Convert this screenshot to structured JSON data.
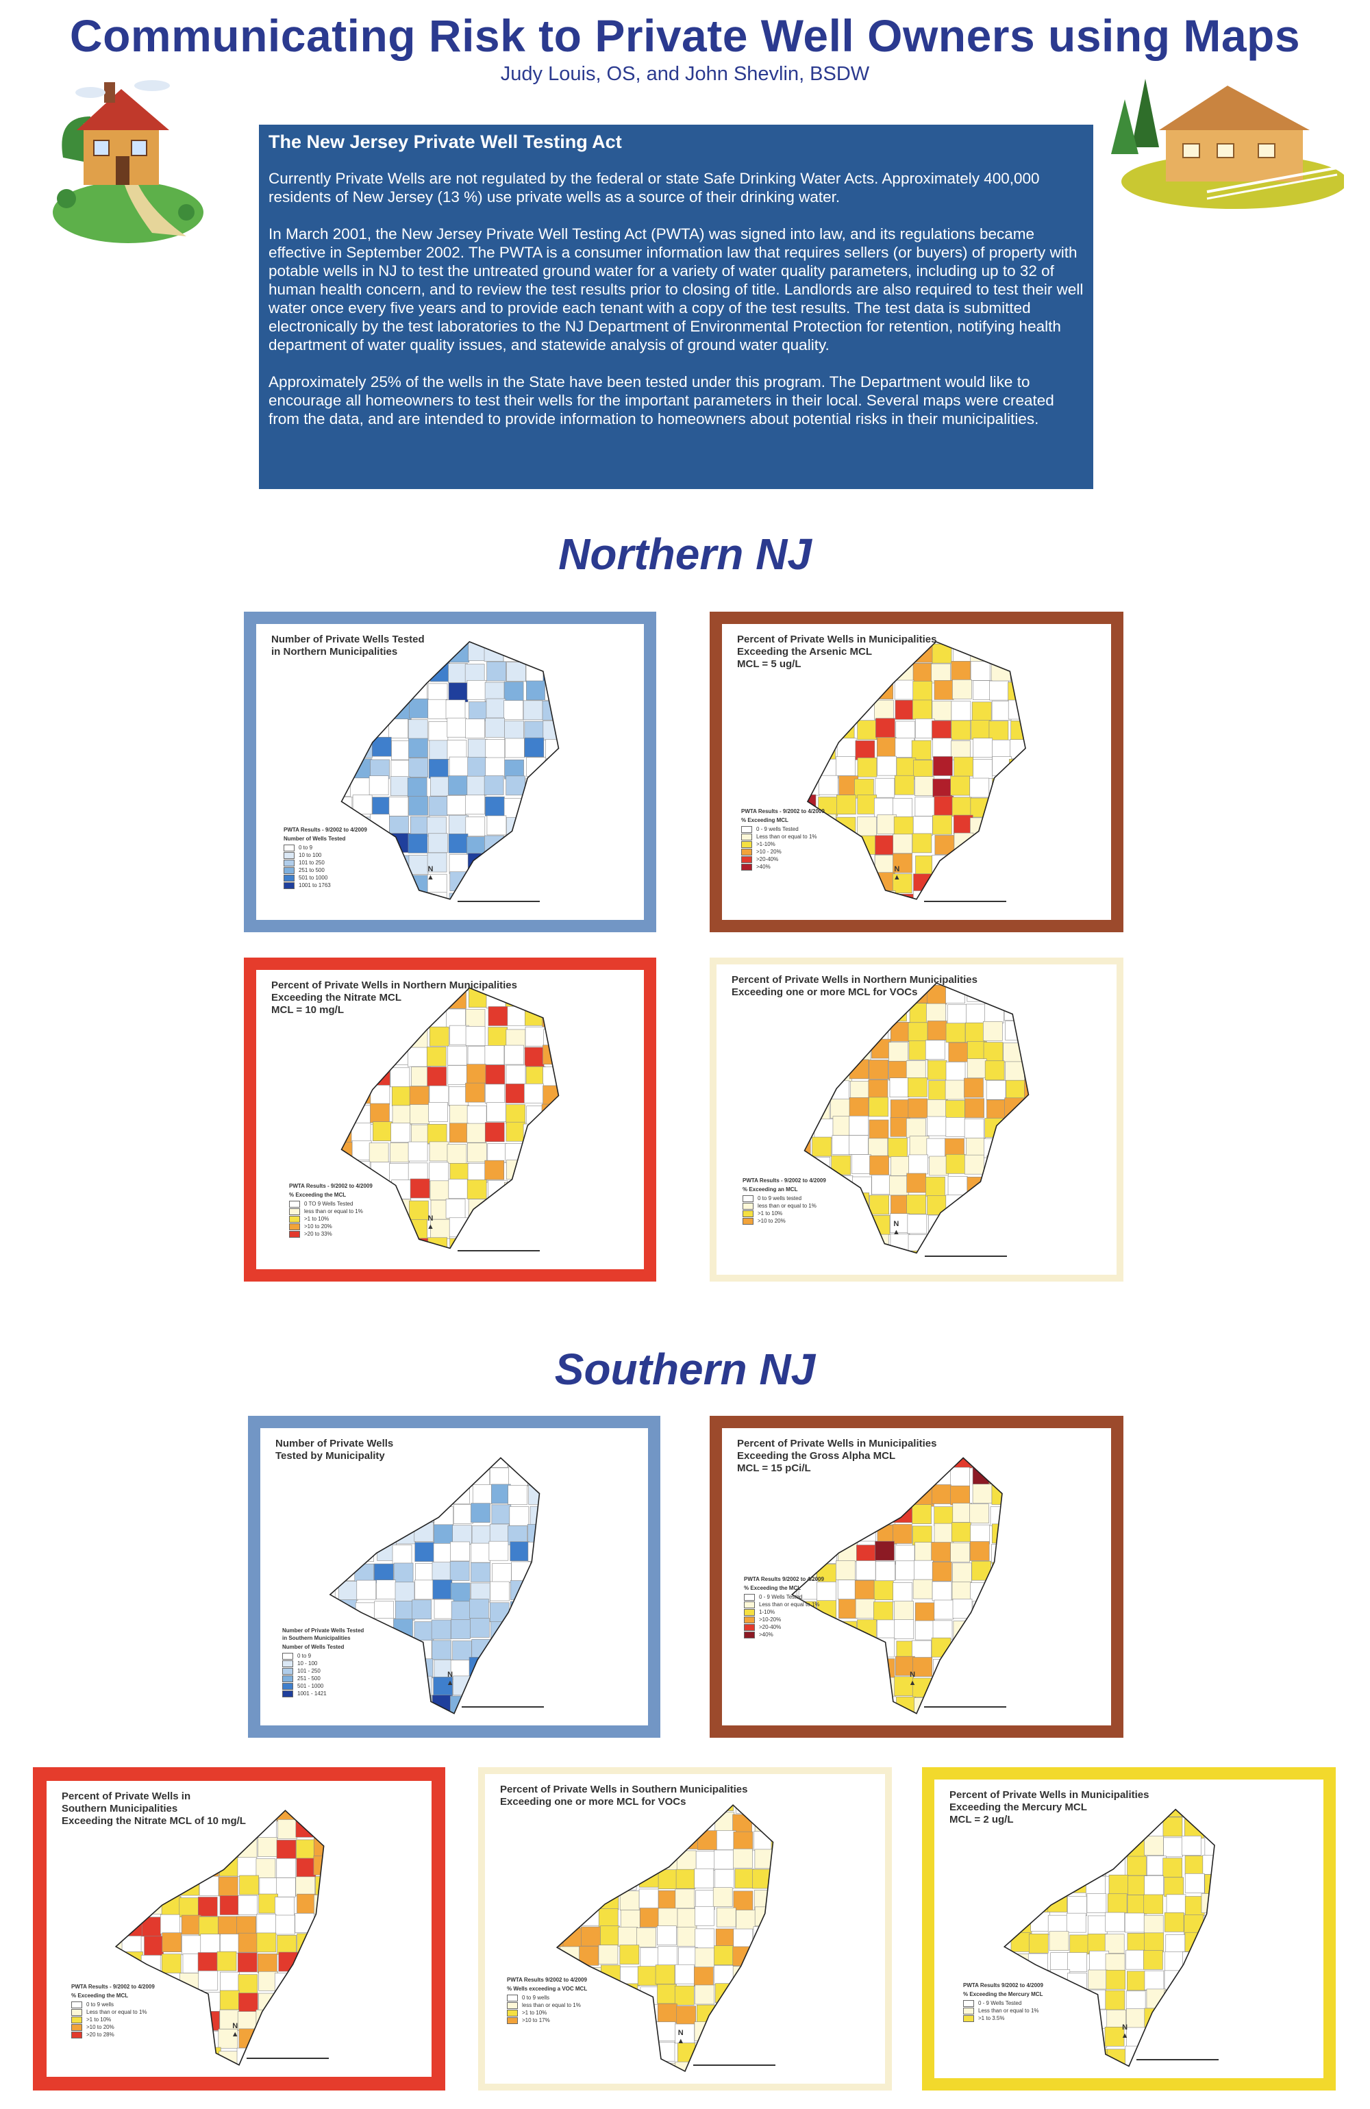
{
  "header": {
    "title": "Communicating Risk to Private Well Owners using Maps",
    "authors": "Judy Louis, OS, and John Shevlin, BSDW"
  },
  "intro": {
    "heading": "The New Jersey Private Well Testing Act",
    "p1": "Currently Private Wells are not regulated by the federal or state Safe Drinking Water Acts.  Approximately 400,000 residents of New Jersey (13 %) use private wells as a source of their drinking water.",
    "p2": "In March 2001, the New Jersey Private Well Testing Act (PWTA) was signed into law, and its regulations became effective in September 2002. The PWTA is a consumer information law that requires sellers (or buyers) of property with potable wells in NJ to test the untreated ground water for a variety of water quality parameters, including up to 32 of human health concern, and to review the test results prior to closing of title. Landlords are also required to test their well water once every five years and to provide each tenant with a copy of the test results.  The test data is submitted electronically by the test laboratories to the NJ Department of Environmental Protection for retention, notifying health department of water quality issues, and statewide analysis of ground  water quality.",
    "p3": "Approximately 25% of the wells in the State have been tested under this program.  The Department would like to encourage all homeowners to test their wells for the important parameters in their local.  Several maps were created from the data, and are intended to provide information to homeowners about potential risks in their municipalities."
  },
  "sections": {
    "north": "Northern NJ",
    "south": "Southern NJ"
  },
  "maps": [
    {
      "title": "Number of Private Wells Tested\nin Northern Municipalities",
      "legend_head": "PWTA Results - 9/2002 to 4/2009",
      "legend_sub": "Number of Wells Tested",
      "legend": [
        "0 to 9",
        "10 to 100",
        "101 to 250",
        "251 to 500",
        "501 to 1000",
        "1001 to 1763"
      ],
      "frame": "#7296c5",
      "colors": [
        "#ffffff",
        "#dbe8f5",
        "#b0cdea",
        "#7fb0dd",
        "#3f7fcc",
        "#1f3f9c"
      ]
    },
    {
      "title": "Percent of Private Wells in Municipalities\nExceeding the Arsenic MCL\nMCL = 5 ug/L",
      "legend_head": "PWTA Results - 9/2002 to 4/2009",
      "legend_sub": "% Exceeding MCL",
      "legend": [
        "0 - 9 wells Tested",
        "Less than or equal to 1%",
        ">1-10%",
        ">10 - 20%",
        ">20-40%",
        ">40%"
      ],
      "frame": "#9c4a2c",
      "colors": [
        "#ffffff",
        "#fdf8d8",
        "#f5e042",
        "#f2a33a",
        "#e23a2d",
        "#b01e2a"
      ]
    },
    {
      "title": "Percent of Private Wells in Northern Municipalities\nExceeding the Nitrate MCL\nMCL = 10 mg/L",
      "legend_head": "PWTA Results - 9/2002 to 4/2009",
      "legend_sub": "% Exceeding the MCL",
      "legend": [
        "0 TO 9 Wells Tested",
        "less than or equal to 1%",
        ">1 to 10%",
        ">10 to 20%",
        ">20 to 33%"
      ],
      "frame": "#e53c2c",
      "colors": [
        "#ffffff",
        "#fdf8d8",
        "#f5e042",
        "#f2a33a",
        "#e23a2d"
      ]
    },
    {
      "title": "Percent of Private Wells in Northern Municipalities\nExceeding one or more MCL for VOCs",
      "legend_head": "PWTA Results - 9/2002 to 4/2009",
      "legend_sub": "% Exceeding an MCL",
      "legend": [
        "0 to 9 wells tested",
        "less than or equal to 1%",
        ">1 to 10%",
        ">10 to 20%"
      ],
      "frame": "#f7efd0",
      "colors": [
        "#ffffff",
        "#fdf8d8",
        "#f5e042",
        "#f2a33a"
      ]
    },
    {
      "title": "Number of Private Wells\nTested by Municipality",
      "legend_head": "Number of Private Wells Tested\nin Southern Municipalities",
      "legend_sub": "Number of Wells Tested",
      "legend": [
        "0 to 9",
        "10 - 100",
        "101 - 250",
        "251 - 500",
        "501 - 1000",
        "1001 - 1421"
      ],
      "frame": "#7296c5",
      "colors": [
        "#ffffff",
        "#dbe8f5",
        "#b0cdea",
        "#7fb0dd",
        "#3f7fcc",
        "#1f3f9c"
      ]
    },
    {
      "title": "Percent of Private Wells in Municipalities\nExceeding the Gross Alpha MCL\nMCL = 15 pCi/L",
      "legend_head": "PWTA Results 9/2002 to 4/2009",
      "legend_sub": "% Exceeding the MCL",
      "legend": [
        "0 - 9 Wells Tested",
        "Less than or equal to 1%",
        "1-10%",
        ">10-20%",
        ">20-40%",
        ">40%"
      ],
      "frame": "#9c4a2c",
      "colors": [
        "#ffffff",
        "#fdf8d8",
        "#f5e042",
        "#f2a33a",
        "#e23a2d",
        "#8c1a24"
      ]
    },
    {
      "title": "Percent of Private Wells in\nSouthern Municipalities\nExceeding the Nitrate MCL of 10 mg/L",
      "legend_head": "PWTA Results - 9/2002 to 4/2009",
      "legend_sub": "% Exceeding the MCL",
      "legend": [
        "0 to 9 wells",
        "Less than or equal to 1%",
        ">1 to 10%",
        ">10 to 20%",
        ">20 to 28%"
      ],
      "frame": "#e53c2c",
      "colors": [
        "#ffffff",
        "#fdf8d8",
        "#f5e042",
        "#f2a33a",
        "#e23a2d"
      ]
    },
    {
      "title": "Percent of Private Wells in Southern Municipalities\nExceeding one or more MCL for VOCs",
      "legend_head": "PWTA Results 9/2002 to 4/2009",
      "legend_sub": "% Wells exceeding a VOC MCL",
      "legend": [
        "0 to 9 wells",
        "less than or equal to 1%",
        ">1 to 10%",
        ">10 to 17%"
      ],
      "frame": "#f7efd0",
      "colors": [
        "#ffffff",
        "#fdf8d8",
        "#f5e042",
        "#f2a33a"
      ]
    },
    {
      "title": "Percent of Private Wells in Municipalities\nExceeding the Mercury MCL\nMCL = 2 ug/L",
      "legend_head": "PWTA Results 9/2002 to 4/2009",
      "legend_sub": "% Exceeding the Mercury MCL",
      "legend": [
        "0 - 9 Wells Tested",
        "Less than or equal to 1%",
        ">1 to 3.5%"
      ],
      "frame": "#f2d92c",
      "colors": [
        "#ffffff",
        "#fdf8d8",
        "#f5e042"
      ]
    }
  ]
}
